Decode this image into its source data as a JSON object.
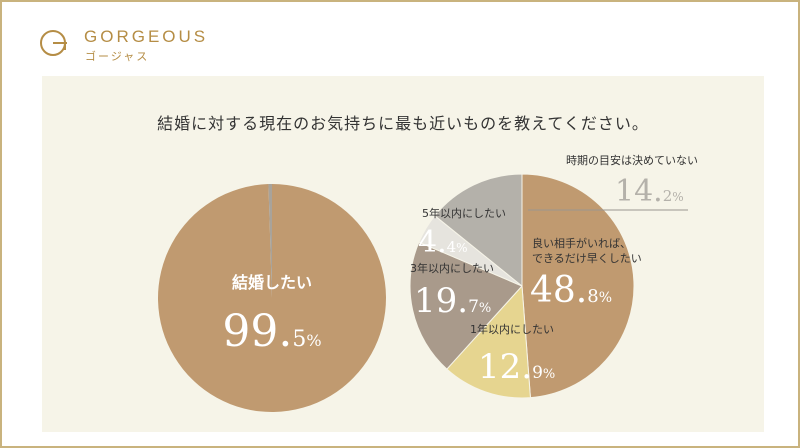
{
  "brand": {
    "name": "GORGEOUS",
    "kana": "ゴージャス",
    "accent": "#b58d45"
  },
  "title": "結婚に対する現在のお気持ちに最も近いものを教えてください。",
  "chart_data": [
    {
      "type": "pie",
      "slices": [
        {
          "label": "結婚したい",
          "value": 99.5,
          "color": "#c09a70",
          "pct_text": "99.",
          "pct_dec": "5",
          "unit": "%"
        },
        {
          "label": "",
          "value": 0.5,
          "color": "#a8a39b"
        }
      ]
    },
    {
      "type": "pie",
      "slices": [
        {
          "label": "良い相手がいれば、",
          "label2": "できるだけ早くしたい",
          "value": 48.8,
          "color": "#c09a70",
          "pct_text": "48.",
          "pct_dec": "8",
          "unit": "%"
        },
        {
          "label": "1年以内にしたい",
          "value": 12.9,
          "color": "#e6d590",
          "pct_text": "12.",
          "pct_dec": "9",
          "unit": "%"
        },
        {
          "label": "3年以内にしたい",
          "value": 19.7,
          "color": "#a99a8b",
          "pct_text": "19.",
          "pct_dec": "7",
          "unit": "%"
        },
        {
          "label": "5年以内にしたい",
          "value": 4.4,
          "color": "#e6e4de",
          "pct_text": "4.",
          "pct_dec": "4",
          "unit": "%"
        },
        {
          "label": "時期の目安は決めていない",
          "value": 14.2,
          "color": "#b4b1aa",
          "pct_text": "14.",
          "pct_dec": "2",
          "unit": "%"
        }
      ]
    }
  ]
}
